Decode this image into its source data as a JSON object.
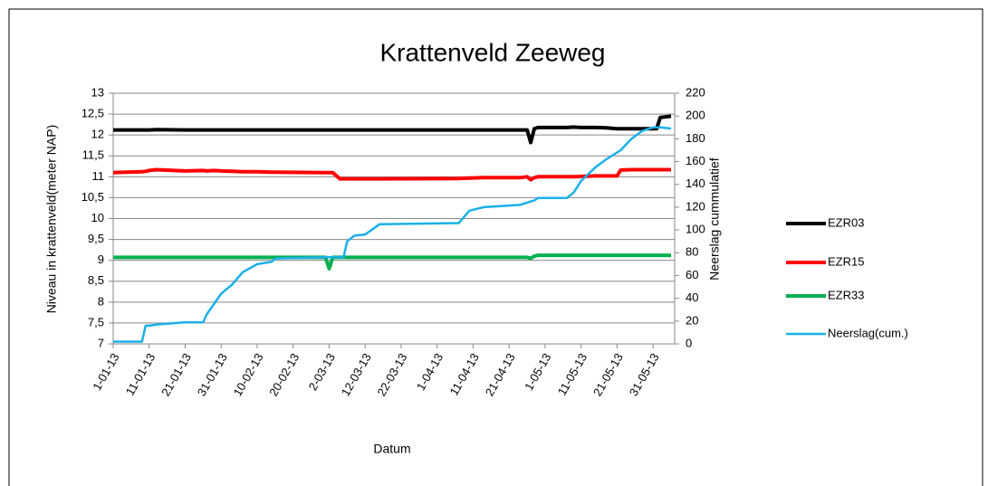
{
  "chart_data": {
    "type": "line",
    "title": "Krattenveld Zeeweg",
    "xlabel": "Datum",
    "ylabel": "Niveau in krattenveld(meter NAP)",
    "y2label": "Neerslag cummulatief",
    "x": [
      "1-01-13",
      "9-01-13",
      "10-01-13",
      "11-01-13",
      "13-01-13",
      "21-01-13",
      "26-01-13",
      "27-01-13",
      "29-01-13",
      "31-01-13",
      "3-02-13",
      "6-02-13",
      "10-02-13",
      "14-02-13",
      "15-02-13",
      "1-03-13",
      "2-03-13",
      "3-03-13",
      "5-03-13",
      "6-03-13",
      "7-03-13",
      "9-03-13",
      "12-03-13",
      "16-03-13",
      "7-04-13",
      "10-04-13",
      "14-04-13",
      "24-04-13",
      "26-04-13",
      "27-04-13",
      "28-04-13",
      "29-04-13",
      "7-05-13",
      "9-05-13",
      "11-05-13",
      "15-05-13",
      "18-05-13",
      "21-05-13",
      "22-05-13",
      "25-05-13",
      "28-05-13",
      "31-05-13",
      "1-06-13",
      "2-06-13",
      "5-06-13"
    ],
    "xlim": [
      "1-01-13",
      "6-06-13"
    ],
    "xticks": [
      "1-01-13",
      "11-01-13",
      "21-01-13",
      "31-01-13",
      "10-02-13",
      "20-02-13",
      "2-03-13",
      "12-03-13",
      "22-03-13",
      "1-04-13",
      "11-04-13",
      "21-04-13",
      "1-05-13",
      "11-05-13",
      "21-05-13",
      "31-05-13"
    ],
    "ylim": [
      7,
      13
    ],
    "yticks": [
      7,
      {
        "value": 7.5,
        "label": "7,5"
      },
      8,
      {
        "value": 8.5,
        "label": "8,5"
      },
      9,
      {
        "value": 9.5,
        "label": "9,5"
      },
      10,
      {
        "value": 10.5,
        "label": "10,5"
      },
      11,
      {
        "value": 11.5,
        "label": "11,5"
      },
      12,
      {
        "value": 12.5,
        "label": "12,5"
      },
      13
    ],
    "y2lim": [
      0,
      220
    ],
    "y2ticks": [
      0,
      20,
      40,
      60,
      80,
      100,
      120,
      140,
      160,
      180,
      200,
      220
    ],
    "grid": true,
    "legend": "right",
    "series": [
      {
        "name": "EZR03",
        "color": "#000000",
        "values": [
          12.12,
          12.12,
          12.12,
          12.12,
          12.13,
          12.12,
          12.12,
          12.12,
          12.12,
          12.12,
          12.12,
          12.12,
          12.12,
          12.12,
          12.12,
          12.12,
          12.12,
          12.12,
          12.12,
          12.12,
          12.12,
          12.12,
          12.12,
          12.12,
          12.12,
          12.12,
          12.12,
          12.12,
          12.12,
          11.82,
          12.15,
          12.18,
          12.18,
          12.19,
          12.18,
          12.18,
          12.17,
          12.15,
          12.15,
          12.15,
          12.15,
          12.15,
          12.15,
          12.42,
          12.45
        ]
      },
      {
        "name": "EZR15",
        "color": "#ff0000",
        "values": [
          11.1,
          11.12,
          11.13,
          11.15,
          11.17,
          11.14,
          11.15,
          11.14,
          11.15,
          11.14,
          11.13,
          11.12,
          11.12,
          11.11,
          11.11,
          11.1,
          11.1,
          11.1,
          10.95,
          10.95,
          10.95,
          10.95,
          10.95,
          10.95,
          10.96,
          10.97,
          10.98,
          10.98,
          11.0,
          10.93,
          10.98,
          11.0,
          11.0,
          11.0,
          11.01,
          11.02,
          11.02,
          11.02,
          11.16,
          11.17,
          11.17,
          11.17,
          11.17,
          11.17,
          11.17
        ]
      },
      {
        "name": "EZR33",
        "color": "#00b050",
        "values": [
          9.07,
          9.07,
          9.07,
          9.07,
          9.07,
          9.07,
          9.07,
          9.07,
          9.07,
          9.07,
          9.07,
          9.07,
          9.07,
          9.07,
          9.07,
          9.07,
          8.8,
          9.07,
          9.07,
          9.07,
          9.07,
          9.07,
          9.07,
          9.07,
          9.07,
          9.07,
          9.07,
          9.07,
          9.07,
          9.05,
          9.1,
          9.12,
          9.12,
          9.12,
          9.12,
          9.12,
          9.12,
          9.12,
          9.12,
          9.12,
          9.12,
          9.12,
          9.12,
          9.12,
          9.12
        ]
      },
      {
        "name": "Neerslag(cum.)",
        "color": "#1ab0e8",
        "axis": "y2",
        "values": [
          2,
          2,
          16,
          16,
          17,
          19,
          19,
          26,
          35,
          44,
          52,
          63,
          70,
          72,
          75,
          76,
          76,
          76,
          76,
          76,
          90,
          95,
          96,
          105,
          106,
          117,
          120,
          122,
          124,
          125,
          126,
          128,
          128,
          133,
          143,
          155,
          162,
          168,
          170,
          180,
          187,
          190,
          190,
          190,
          189
        ]
      }
    ]
  }
}
